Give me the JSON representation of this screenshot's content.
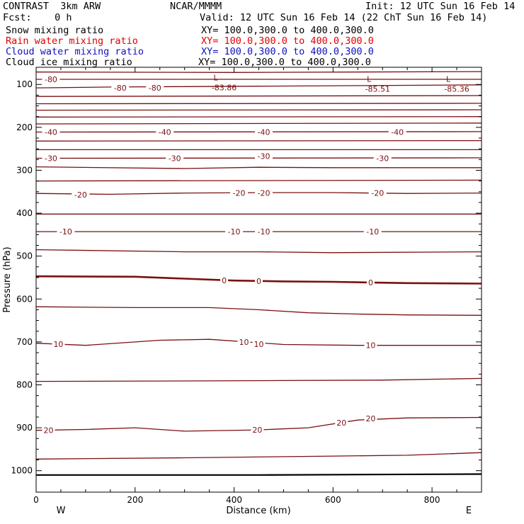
{
  "header": {
    "title": "CONTRAST  3km ARW",
    "center": "NCAR/MMMM",
    "init": "Init: 12 UTC Sun 16 Feb 14",
    "fcst": "Fcst:    0 h",
    "valid": "Valid: 12 UTC Sun 16 Feb 14 (22 ChT Sun 16 Feb 14)"
  },
  "fields": [
    {
      "name": "Snow mixing ratio",
      "xy": "XY= 100.0,300.0 to 400.0,300.0",
      "color": "#000000"
    },
    {
      "name": "Rain water mixing ratio",
      "xy": "XY= 100.0,300.0 to 400.0,300.0",
      "color": "#e00000"
    },
    {
      "name": "Cloud water mixing ratio",
      "xy": "XY= 100.0,300.0 to 400.0,300.0",
      "color": "#1010c0"
    },
    {
      "name": "Cloud ice mixing ratio",
      "xy": "XY= 100.0,300.0 to 400.0,300.0",
      "color": "#000000"
    }
  ],
  "chart_data": {
    "type": "contour",
    "title": "",
    "xlabel": "Distance (km)",
    "ylabel": "Pressure (hPa)",
    "xlim": [
      0,
      900
    ],
    "ylim": [
      1050,
      60
    ],
    "xticks": [
      0,
      200,
      400,
      600,
      800
    ],
    "yticks": [
      100,
      200,
      300,
      400,
      500,
      600,
      700,
      800,
      900,
      1000
    ],
    "x_end_labels": {
      "left": "W",
      "right": "E"
    },
    "contour_color": "#7a1010",
    "ground_color": "#000000",
    "contours": [
      {
        "x": [
          0,
          900
        ],
        "p": [
          88,
          88
        ]
      },
      {
        "x": [
          0,
          400,
          900
        ],
        "p": [
          71,
          72,
          70
        ]
      },
      {
        "x": [
          0,
          150,
          300,
          450,
          600,
          750,
          900
        ],
        "p": [
          108,
          106,
          105,
          104,
          103,
          102,
          101
        ]
      },
      {
        "x": [
          0,
          900
        ],
        "p": [
          128,
          126
        ]
      },
      {
        "x": [
          0,
          900
        ],
        "p": [
          145,
          144
        ]
      },
      {
        "x": [
          0,
          900
        ],
        "p": [
          160,
          159
        ]
      },
      {
        "x": [
          0,
          900
        ],
        "p": [
          176,
          175
        ]
      },
      {
        "x": [
          0,
          900
        ],
        "p": [
          192,
          190
        ]
      },
      {
        "x": [
          0,
          900
        ],
        "p": [
          211,
          210
        ]
      },
      {
        "x": [
          0,
          900
        ],
        "p": [
          232,
          231
        ]
      },
      {
        "x": [
          0,
          900
        ],
        "p": [
          252,
          252
        ]
      },
      {
        "x": [
          0,
          900
        ],
        "p": [
          272,
          271
        ]
      },
      {
        "x": [
          0,
          300,
          450,
          600,
          900
        ],
        "p": [
          292,
          296,
          293,
          294,
          294
        ]
      },
      {
        "x": [
          0,
          900
        ],
        "p": [
          325,
          323
        ]
      },
      {
        "x": [
          0,
          150,
          300,
          450,
          600,
          750,
          900
        ],
        "p": [
          354,
          356,
          353,
          352,
          352,
          354,
          353
        ]
      },
      {
        "x": [
          0,
          900
        ],
        "p": [
          402,
          402
        ]
      },
      {
        "x": [
          0,
          900
        ],
        "p": [
          443,
          443
        ]
      },
      {
        "x": [
          0,
          300,
          450,
          600,
          900
        ],
        "p": [
          485,
          490,
          490,
          492,
          490
        ]
      },
      {
        "x": [
          0,
          200,
          400,
          500,
          600,
          750,
          900
        ],
        "p": [
          547,
          548,
          557,
          559,
          560,
          563,
          564
        ],
        "bold": true
      },
      {
        "x": [
          0,
          200,
          350,
          450,
          550,
          650,
          750,
          900
        ],
        "p": [
          618,
          620,
          620,
          625,
          632,
          635,
          637,
          638
        ]
      },
      {
        "x": [
          0,
          100,
          250,
          350,
          500,
          650,
          750,
          900
        ],
        "p": [
          703,
          708,
          696,
          694,
          706,
          708,
          708,
          708
        ]
      },
      {
        "x": [
          0,
          300,
          500,
          700,
          900
        ],
        "p": [
          792,
          791,
          790,
          789,
          785
        ]
      },
      {
        "x": [
          0,
          100,
          200,
          300,
          450,
          550,
          650,
          750,
          900
        ],
        "p": [
          906,
          904,
          900,
          908,
          905,
          900,
          882,
          877,
          876
        ]
      },
      {
        "x": [
          0,
          300,
          600,
          750,
          900
        ],
        "p": [
          973,
          970,
          966,
          964,
          958
        ]
      },
      {
        "x": [
          0,
          450,
          900
        ],
        "p": [
          1010,
          1010,
          1008
        ],
        "ground": true
      }
    ],
    "labels": [
      {
        "text": "-80",
        "x": 30,
        "p": 88
      },
      {
        "text": "-80",
        "x": 170,
        "p": 108
      },
      {
        "text": "-80",
        "x": 240,
        "p": 108
      },
      {
        "text": "-40",
        "x": 30,
        "p": 211
      },
      {
        "text": "-40",
        "x": 260,
        "p": 211
      },
      {
        "text": "-40",
        "x": 460,
        "p": 211
      },
      {
        "text": "-40",
        "x": 730,
        "p": 211
      },
      {
        "text": "-30",
        "x": 30,
        "p": 272
      },
      {
        "text": "-30",
        "x": 280,
        "p": 272
      },
      {
        "text": "-30",
        "x": 460,
        "p": 267
      },
      {
        "text": "-30",
        "x": 700,
        "p": 272
      },
      {
        "text": "-20",
        "x": 90,
        "p": 357
      },
      {
        "text": "-20",
        "x": 410,
        "p": 353
      },
      {
        "text": "-20",
        "x": 460,
        "p": 353
      },
      {
        "text": "-20",
        "x": 690,
        "p": 353
      },
      {
        "text": "-10",
        "x": 60,
        "p": 443
      },
      {
        "text": "-10",
        "x": 400,
        "p": 443
      },
      {
        "text": "-10",
        "x": 460,
        "p": 443
      },
      {
        "text": "-10",
        "x": 680,
        "p": 443
      },
      {
        "text": "0",
        "x": 380,
        "p": 557
      },
      {
        "text": "0",
        "x": 450,
        "p": 558
      },
      {
        "text": "0",
        "x": 676,
        "p": 562
      },
      {
        "text": "10",
        "x": 45,
        "p": 705
      },
      {
        "text": "10",
        "x": 420,
        "p": 700
      },
      {
        "text": "10",
        "x": 450,
        "p": 705
      },
      {
        "text": "10",
        "x": 676,
        "p": 708
      },
      {
        "text": "20",
        "x": 25,
        "p": 906
      },
      {
        "text": "20",
        "x": 447,
        "p": 905
      },
      {
        "text": "20",
        "x": 617,
        "p": 888
      },
      {
        "text": "20",
        "x": 676,
        "p": 878
      }
    ],
    "lows": [
      {
        "text": "L",
        "value": "-83.86",
        "x": 380,
        "p": 94
      },
      {
        "text": "L",
        "value": "-85.51",
        "x": 690,
        "p": 97
      },
      {
        "text": "L",
        "value": "-85.36",
        "x": 850,
        "p": 97
      }
    ]
  }
}
